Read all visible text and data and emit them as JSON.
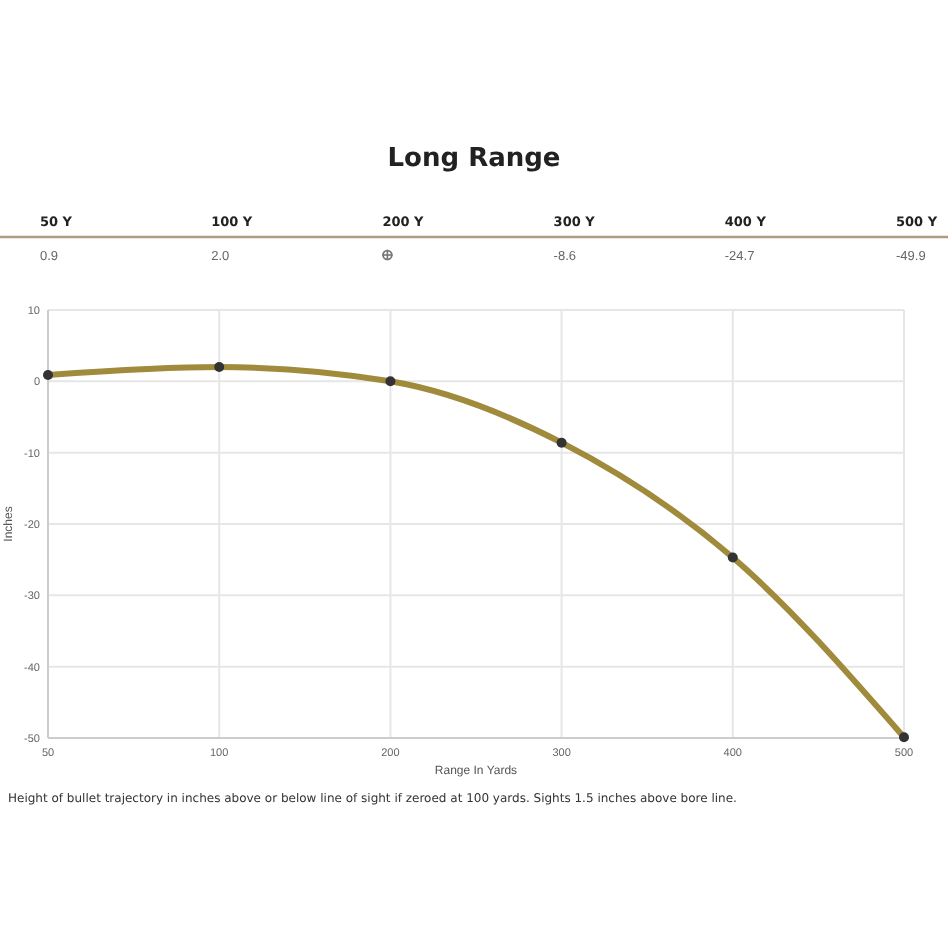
{
  "chart_data": {
    "type": "line",
    "title": "Long Range",
    "xlabel": "Range In Yards",
    "ylabel": "Inches",
    "categories": [
      "50",
      "100",
      "200",
      "300",
      "400",
      "500"
    ],
    "series": [
      {
        "color": "#a08a3c",
        "values": [
          0.9,
          2.0,
          0,
          -8.6,
          -24.7,
          -49.9
        ],
        "value_labels": [
          "0.9",
          "2.0",
          null,
          "-8.6",
          "-24.7",
          "-49.9"
        ]
      }
    ],
    "ylim": [
      -50,
      10
    ],
    "yticks": [
      -50,
      -40,
      -30,
      -20,
      -10,
      0,
      10
    ],
    "grid": true,
    "marker": "circle",
    "line_style": "solid",
    "data_labels": false,
    "annotations": [
      "50 Y",
      "100 Y",
      "200 Y",
      "300 Y",
      "400 Y",
      "500 Y",
      "Height of bullet trajectory in inches above or below line of sight if zeroed at 100 yards. Sights 1.5 inches above bore line."
    ]
  }
}
